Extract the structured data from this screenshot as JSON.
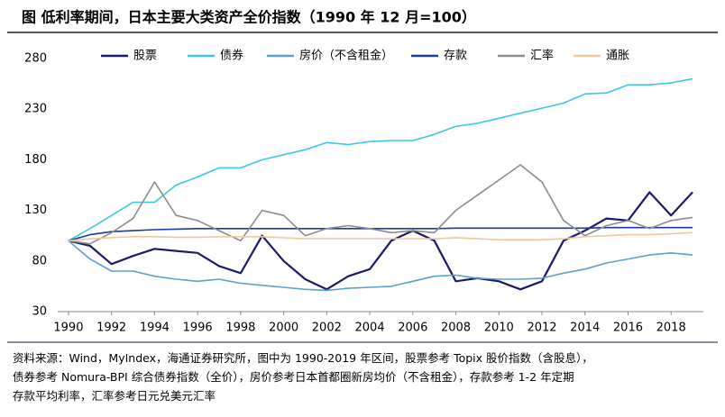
{
  "chart_data": {
    "type": "line",
    "title": "图  低利率期间，日本主要大类资产全价指数（1990 年 12 月=100）",
    "x": [
      1990,
      1991,
      1992,
      1993,
      1994,
      1995,
      1996,
      1997,
      1998,
      1999,
      2000,
      2001,
      2002,
      2003,
      2004,
      2005,
      2006,
      2007,
      2008,
      2009,
      2010,
      2011,
      2012,
      2013,
      2014,
      2015,
      2016,
      2017,
      2018,
      2019
    ],
    "series": [
      {
        "name": "股票",
        "color": "#1b1b6b",
        "values": [
          100,
          95,
          77,
          85,
          92,
          90,
          88,
          75,
          68,
          105,
          80,
          62,
          52,
          65,
          72,
          100,
          110,
          100,
          60,
          63,
          60,
          52,
          60,
          100,
          110,
          122,
          120,
          148,
          125,
          148
        ]
      },
      {
        "name": "债券",
        "color": "#3cc8e0",
        "values": [
          100,
          112,
          125,
          138,
          138,
          155,
          163,
          172,
          172,
          180,
          185,
          190,
          197,
          195,
          198,
          199,
          199,
          205,
          213,
          216,
          221,
          226,
          231,
          236,
          245,
          246,
          254,
          254,
          256,
          260
        ]
      },
      {
        "name": "房价（不含租金）",
        "color": "#5b9fd0",
        "values": [
          100,
          82,
          70,
          70,
          65,
          62,
          60,
          62,
          58,
          56,
          54,
          52,
          51,
          53,
          54,
          55,
          60,
          65,
          66,
          63,
          62,
          62,
          63,
          68,
          72,
          78,
          82,
          86,
          88,
          86
        ]
      },
      {
        "name": "存款",
        "color": "#1f3a9e",
        "values": [
          100,
          106,
          109,
          110,
          111,
          111.5,
          112,
          112,
          112,
          112,
          112,
          112,
          112,
          112,
          112,
          112,
          112,
          112,
          112.5,
          112.5,
          112.5,
          112.5,
          112.5,
          112.5,
          112.5,
          113,
          113,
          113,
          113,
          113
        ]
      },
      {
        "name": "汇率",
        "color": "#8c8c8c",
        "values": [
          100,
          97,
          108,
          122,
          158,
          125,
          120,
          110,
          100,
          130,
          125,
          105,
          112,
          115,
          112,
          108,
          110,
          108,
          130,
          145,
          160,
          175,
          158,
          120,
          105,
          115,
          120,
          112,
          120,
          123
        ]
      },
      {
        "name": "通胀",
        "color": "#f0c8a0",
        "values": [
          100,
          102,
          103,
          104,
          104,
          103.5,
          103.5,
          104,
          104,
          104,
          103,
          102,
          102,
          102,
          102,
          102,
          102,
          102,
          103,
          102,
          101,
          101,
          101,
          102,
          104,
          105,
          106,
          106,
          107,
          108
        ]
      }
    ],
    "xlim": [
      1989.5,
      2019.5
    ],
    "ylim": [
      30,
      280
    ],
    "xticks": [
      1990,
      1992,
      1994,
      1996,
      1998,
      2000,
      2002,
      2004,
      2006,
      2008,
      2010,
      2012,
      2014,
      2016,
      2018
    ],
    "yticks": [
      30,
      80,
      130,
      180,
      230,
      280
    ],
    "notes": [
      "资料来源：Wind，MyIndex，海通证券研究所，图中为 1990-2019 年区间，股票参考 Topix 股价指数（含股息），",
      "债券参考 Nomura-BPI 综合债券指数（全价），房价参考日本首都圈新房均价（不含租金），存款参考 1-2 年定期",
      "存款平均利率，汇率参考日元兑美元汇率"
    ]
  }
}
